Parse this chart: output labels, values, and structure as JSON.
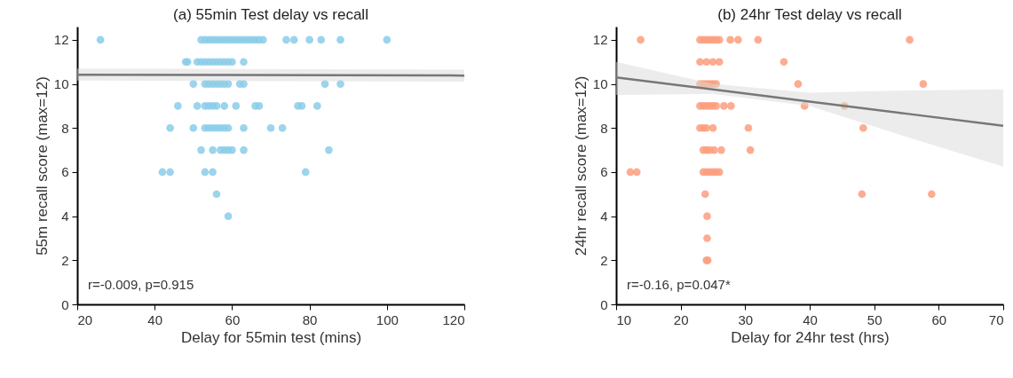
{
  "chart_data": [
    {
      "type": "scatter",
      "title": "(a) 55min Test delay vs recall",
      "xlabel": "Delay for 55min test (mins)",
      "ylabel": "55m recall score (max=12)",
      "xlim": [
        20,
        120
      ],
      "xticks": [
        20,
        40,
        60,
        80,
        100,
        120
      ],
      "ylim": [
        0,
        12.6
      ],
      "yticks": [
        0,
        2,
        4,
        6,
        8,
        10,
        12
      ],
      "annotations": [
        "r=-0.009, p=0.915"
      ],
      "series": [
        {
          "marker": "circle",
          "color": "#89cde9",
          "x": [
            26,
            52,
            53,
            54,
            55,
            56,
            57,
            58,
            59,
            60,
            61,
            62,
            63,
            64,
            65,
            66,
            67,
            68,
            74,
            76,
            80,
            83,
            88,
            100,
            48,
            48.5,
            51,
            52,
            53,
            54,
            55,
            56,
            57,
            58,
            59,
            60,
            63,
            50,
            53,
            54,
            55,
            56,
            57,
            58,
            59,
            62,
            63,
            84,
            88,
            46,
            51,
            53,
            54,
            55,
            56,
            58,
            61,
            66,
            67,
            77,
            78,
            82,
            44,
            50,
            53,
            54,
            55,
            56,
            57,
            58,
            59,
            63,
            70,
            73,
            52,
            55,
            57,
            58,
            59,
            60,
            63,
            85,
            42,
            44,
            53,
            55,
            79,
            56,
            59
          ],
          "values": [
            12,
            12,
            12,
            12,
            12,
            12,
            12,
            12,
            12,
            12,
            12,
            12,
            12,
            12,
            12,
            12,
            12,
            12,
            12,
            12,
            12,
            12,
            12,
            12,
            11,
            11,
            11,
            11,
            11,
            11,
            11,
            11,
            11,
            11,
            11,
            11,
            11,
            10,
            10,
            10,
            10,
            10,
            10,
            10,
            10,
            10,
            10,
            10,
            10,
            9,
            9,
            9,
            9,
            9,
            9,
            9,
            9,
            9,
            9,
            9,
            9,
            9,
            8,
            8,
            8,
            8,
            8,
            8,
            8,
            8,
            8,
            8,
            8,
            8,
            7,
            7,
            7,
            7,
            7,
            7,
            7,
            7,
            6,
            6,
            6,
            6,
            6,
            5,
            4
          ]
        },
        {
          "type": "line",
          "marker": "none",
          "color": "#777777",
          "x": [
            20,
            120
          ],
          "values": [
            10.42,
            10.38
          ],
          "lower": [
            10.15,
            10.1
          ],
          "upper": [
            10.7,
            10.65
          ]
        }
      ]
    },
    {
      "type": "scatter",
      "title": "(b) 24hr Test delay vs recall",
      "xlabel": "Delay for 24hr test (hrs)",
      "ylabel": "24hr recall score (max=12)",
      "xlim": [
        10,
        70
      ],
      "xticks": [
        10,
        20,
        30,
        40,
        50,
        60,
        70
      ],
      "ylim": [
        0,
        12.6
      ],
      "yticks": [
        0,
        2,
        4,
        6,
        8,
        10,
        12
      ],
      "annotations": [
        "r=-0.16, p=0.047*"
      ],
      "series": [
        {
          "marker": "circle",
          "color": "#fc9e7d",
          "x": [
            13.8,
            23,
            23.5,
            24,
            24.5,
            25,
            25.5,
            26,
            27.7,
            28.9,
            32,
            55.5,
            23,
            24,
            25,
            26,
            36,
            23,
            23.5,
            24,
            24.5,
            25,
            25.5,
            38.2,
            57.6,
            23,
            23.5,
            24,
            24.5,
            25,
            25.5,
            26.7,
            27.8,
            39.2,
            45.4,
            23,
            23.5,
            24,
            25,
            30.5,
            48.3,
            23.5,
            24,
            24.5,
            25.2,
            26.3,
            30.8,
            12.2,
            13.2,
            23.5,
            24,
            24.5,
            25,
            25.5,
            26,
            23.8,
            48.1,
            58.9,
            24.1,
            24.1,
            24,
            24.2
          ],
          "values": [
            12,
            12,
            12,
            12,
            12,
            12,
            12,
            12,
            12,
            12,
            12,
            12,
            11,
            11,
            11,
            11,
            11,
            10,
            10,
            10,
            10,
            10,
            10,
            10,
            10,
            9,
            9,
            9,
            9,
            9,
            9,
            9,
            9,
            9,
            9,
            8,
            8,
            8,
            8,
            8,
            8,
            7,
            7,
            7,
            7,
            7,
            7,
            6,
            6,
            6,
            6,
            6,
            6,
            6,
            6,
            5,
            5,
            5,
            4,
            3,
            2,
            2
          ]
        },
        {
          "type": "line",
          "marker": "none",
          "color": "#777777",
          "x": [
            10,
            25,
            40,
            55,
            70
          ],
          "values": [
            10.3,
            9.75,
            9.2,
            8.65,
            8.1
          ],
          "lower": [
            9.5,
            9.55,
            9.0,
            7.6,
            6.25
          ],
          "upper": [
            11.0,
            10.0,
            9.6,
            9.7,
            9.75
          ]
        }
      ]
    }
  ]
}
